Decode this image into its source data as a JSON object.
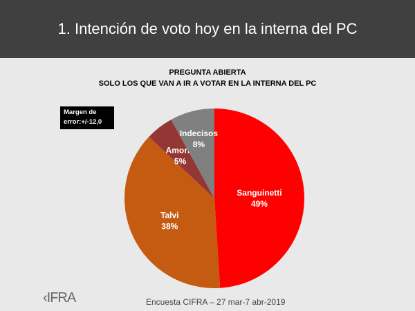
{
  "header": {
    "title": "1. Intención de voto hoy en la interna del PC"
  },
  "chart_data": {
    "type": "pie",
    "title": "PREGUNTA ABIERTA",
    "subtitle": "SOLO LOS QUE VAN A IR A VOTAR EN LA INTERNA DEL  PC",
    "categories": [
      "Sanguinetti",
      "Talvi",
      "Amorín",
      "Indecisos"
    ],
    "values": [
      49,
      38,
      5,
      8
    ],
    "value_labels": [
      "49%",
      "38%",
      "5%",
      "8%"
    ],
    "colors": [
      "#ff0000",
      "#c55a11",
      "#943634",
      "#808080"
    ],
    "annotation": "Margen de\nerror:+/-12,0"
  },
  "footer": {
    "source": "Encuesta CIFRA – 27 mar-7 abr-2019",
    "logo": "CIFRA"
  }
}
